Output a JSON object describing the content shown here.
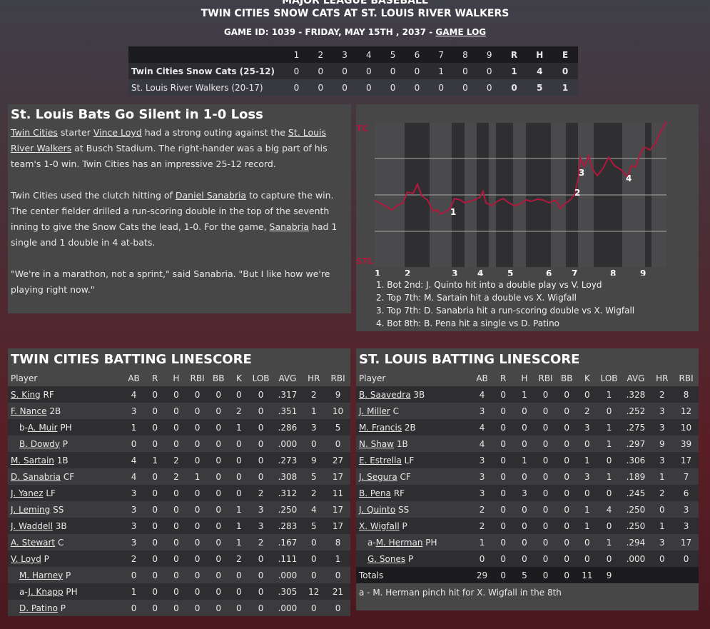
{
  "header": {
    "league": "MAJOR LEAGUE BASEBALL",
    "title": "TWIN CITIES SNOW CATS AT ST. LOUIS RIVER WALKERS",
    "game_info": "GAME ID: 1039 - FRIDAY, MAY 15TH , 2037 -",
    "game_log_link": "GAME LOG"
  },
  "linescore": {
    "innings": [
      "1",
      "2",
      "3",
      "4",
      "5",
      "6",
      "7",
      "8",
      "9"
    ],
    "totals_headers": [
      "R",
      "H",
      "E"
    ],
    "teams": [
      {
        "name": "Twin Cities Snow Cats (25-12)",
        "innings": [
          "0",
          "0",
          "0",
          "0",
          "0",
          "0",
          "1",
          "0",
          "0"
        ],
        "R": "1",
        "H": "4",
        "E": "0",
        "winner": true
      },
      {
        "name": "St. Louis River Walkers (20-17)",
        "innings": [
          "0",
          "0",
          "0",
          "0",
          "0",
          "0",
          "0",
          "0",
          "0"
        ],
        "R": "0",
        "H": "5",
        "E": "1",
        "winner": false
      }
    ]
  },
  "story": {
    "headline": "St. Louis Bats Go Silent in 1-0 Loss",
    "p1": {
      "link1": "Twin Cities",
      "t1": " starter ",
      "link2": "Vince Loyd",
      "t2": " had a strong outing against the ",
      "link3": "St. Louis River Walkers",
      "t3": " at Busch Stadium. The right-hander was a big part of his team's 1-0 win. Twin Cities has an impressive 25-12 record."
    },
    "p2": {
      "t1": "Twin Cities used the clutch hitting of ",
      "link1": "Daniel Sanabria",
      "t2": " to capture the win. The center fielder drilled a run-scoring double in the top of the seventh inning to give the Snow Cats the lead, 1-0. For the game, ",
      "link2": "Sanabria",
      "t3": " had 1 single and 1 double in 4 at-bats."
    },
    "p3": "\"We're in a marathon, not a sprint,\" said Sanabria. \"But I like how we're playing right now.\""
  },
  "win_probability": {
    "top_label": "TC",
    "bottom_label": "STL",
    "inning_labels": [
      "1",
      "2",
      "3",
      "4",
      "5",
      "6",
      "7",
      "8",
      "9"
    ],
    "marker_labels": [
      "1",
      "2",
      "3",
      "4"
    ],
    "line_color": "#b0183c",
    "notes": [
      "1. Bot 2nd: J. Quinto hit into a double play vs V. Loyd",
      "2. Top 7th: M. Sartain hit a double vs X. Wigfall",
      "3. Top 7th: D. Sanabria hit a run-scoring double vs X. Wigfall",
      "4. Bot 8th: B. Pena hit a single vs D. Patino"
    ]
  },
  "batting_headers": [
    "Player",
    "AB",
    "R",
    "H",
    "RBI",
    "BB",
    "K",
    "LOB",
    "AVG",
    "HR",
    "RBI"
  ],
  "tc_batting": {
    "title": "TWIN CITIES BATTING LINESCORE",
    "rows": [
      {
        "prefix": "",
        "name": "S. King",
        "pos": " RF",
        "indent": false,
        "s": [
          "4",
          "0",
          "0",
          "0",
          "0",
          "0",
          "0",
          ".317",
          "2",
          "9"
        ]
      },
      {
        "prefix": "",
        "name": "F. Nance",
        "pos": " 2B",
        "indent": false,
        "s": [
          "3",
          "0",
          "0",
          "0",
          "0",
          "2",
          "0",
          ".351",
          "1",
          "10"
        ]
      },
      {
        "prefix": "b-",
        "name": "A. Muir",
        "pos": " PH",
        "indent": true,
        "s": [
          "1",
          "0",
          "0",
          "0",
          "0",
          "1",
          "0",
          ".286",
          "3",
          "5"
        ]
      },
      {
        "prefix": "",
        "name": "B. Dowdy",
        "pos": " P",
        "indent": true,
        "s": [
          "0",
          "0",
          "0",
          "0",
          "0",
          "0",
          "0",
          ".000",
          "0",
          "0"
        ]
      },
      {
        "prefix": "",
        "name": "M. Sartain",
        "pos": " 1B",
        "indent": false,
        "s": [
          "4",
          "1",
          "2",
          "0",
          "0",
          "0",
          "0",
          ".273",
          "9",
          "27"
        ]
      },
      {
        "prefix": "",
        "name": "D. Sanabria",
        "pos": " CF",
        "indent": false,
        "s": [
          "4",
          "0",
          "2",
          "1",
          "0",
          "0",
          "0",
          ".308",
          "5",
          "17"
        ]
      },
      {
        "prefix": "",
        "name": "J. Yanez",
        "pos": " LF",
        "indent": false,
        "s": [
          "3",
          "0",
          "0",
          "0",
          "0",
          "0",
          "2",
          ".312",
          "2",
          "11"
        ]
      },
      {
        "prefix": "",
        "name": "J. Leming",
        "pos": " SS",
        "indent": false,
        "s": [
          "3",
          "0",
          "0",
          "0",
          "0",
          "1",
          "3",
          ".250",
          "4",
          "17"
        ]
      },
      {
        "prefix": "",
        "name": "J. Waddell",
        "pos": " 3B",
        "indent": false,
        "s": [
          "3",
          "0",
          "0",
          "0",
          "0",
          "1",
          "3",
          ".283",
          "5",
          "17"
        ]
      },
      {
        "prefix": "",
        "name": "A. Stewart",
        "pos": " C",
        "indent": false,
        "s": [
          "3",
          "0",
          "0",
          "0",
          "0",
          "1",
          "2",
          ".167",
          "0",
          "8"
        ]
      },
      {
        "prefix": "",
        "name": "V. Loyd",
        "pos": " P",
        "indent": false,
        "s": [
          "2",
          "0",
          "0",
          "0",
          "0",
          "2",
          "0",
          ".111",
          "0",
          "1"
        ]
      },
      {
        "prefix": "",
        "name": "M. Harney",
        "pos": " P",
        "indent": true,
        "s": [
          "0",
          "0",
          "0",
          "0",
          "0",
          "0",
          "0",
          ".000",
          "0",
          "0"
        ]
      },
      {
        "prefix": "a-",
        "name": "J. Knapp",
        "pos": " PH",
        "indent": true,
        "s": [
          "1",
          "0",
          "0",
          "0",
          "0",
          "0",
          "0",
          ".305",
          "12",
          "21"
        ]
      },
      {
        "prefix": "",
        "name": "D. Patino",
        "pos": " P",
        "indent": true,
        "s": [
          "0",
          "0",
          "0",
          "0",
          "0",
          "0",
          "0",
          ".000",
          "0",
          "0"
        ]
      }
    ]
  },
  "stl_batting": {
    "title": "ST. LOUIS BATTING LINESCORE",
    "rows": [
      {
        "prefix": "",
        "name": "B. Saavedra",
        "pos": " 3B",
        "indent": false,
        "s": [
          "4",
          "0",
          "1",
          "0",
          "0",
          "0",
          "1",
          ".328",
          "2",
          "8"
        ]
      },
      {
        "prefix": "",
        "name": "J. Miller",
        "pos": " C",
        "indent": false,
        "s": [
          "3",
          "0",
          "0",
          "0",
          "0",
          "2",
          "0",
          ".252",
          "3",
          "12"
        ]
      },
      {
        "prefix": "",
        "name": "M. Francis",
        "pos": " 2B",
        "indent": false,
        "s": [
          "4",
          "0",
          "0",
          "0",
          "0",
          "3",
          "1",
          ".275",
          "3",
          "10"
        ]
      },
      {
        "prefix": "",
        "name": "N. Shaw",
        "pos": " 1B",
        "indent": false,
        "s": [
          "4",
          "0",
          "0",
          "0",
          "0",
          "0",
          "1",
          ".297",
          "9",
          "39"
        ]
      },
      {
        "prefix": "",
        "name": "E. Estrella",
        "pos": " LF",
        "indent": false,
        "s": [
          "3",
          "0",
          "1",
          "0",
          "0",
          "1",
          "0",
          ".306",
          "3",
          "17"
        ]
      },
      {
        "prefix": "",
        "name": "J. Segura",
        "pos": " CF",
        "indent": false,
        "s": [
          "3",
          "0",
          "0",
          "0",
          "0",
          "3",
          "1",
          ".189",
          "1",
          "7"
        ]
      },
      {
        "prefix": "",
        "name": "B. Pena",
        "pos": " RF",
        "indent": false,
        "s": [
          "3",
          "0",
          "3",
          "0",
          "0",
          "0",
          "0",
          ".245",
          "2",
          "6"
        ]
      },
      {
        "prefix": "",
        "name": "J. Quinto",
        "pos": " SS",
        "indent": false,
        "s": [
          "2",
          "0",
          "0",
          "0",
          "0",
          "1",
          "4",
          ".250",
          "0",
          "3"
        ]
      },
      {
        "prefix": "",
        "name": "X. Wigfall",
        "pos": " P",
        "indent": false,
        "s": [
          "2",
          "0",
          "0",
          "0",
          "0",
          "1",
          "0",
          ".250",
          "1",
          "3"
        ]
      },
      {
        "prefix": "a-",
        "name": "M. Herman",
        "pos": " PH",
        "indent": true,
        "s": [
          "1",
          "0",
          "0",
          "0",
          "0",
          "0",
          "1",
          ".294",
          "3",
          "17"
        ]
      },
      {
        "prefix": "",
        "name": "G. Sones",
        "pos": " P",
        "indent": true,
        "s": [
          "0",
          "0",
          "0",
          "0",
          "0",
          "0",
          "0",
          ".000",
          "0",
          "0"
        ]
      }
    ],
    "totals": {
      "label": "Totals",
      "s": [
        "29",
        "0",
        "5",
        "0",
        "0",
        "11",
        "9"
      ]
    },
    "footnote": "a - M. Herman pinch hit for X. Wigfall in the 8th"
  }
}
